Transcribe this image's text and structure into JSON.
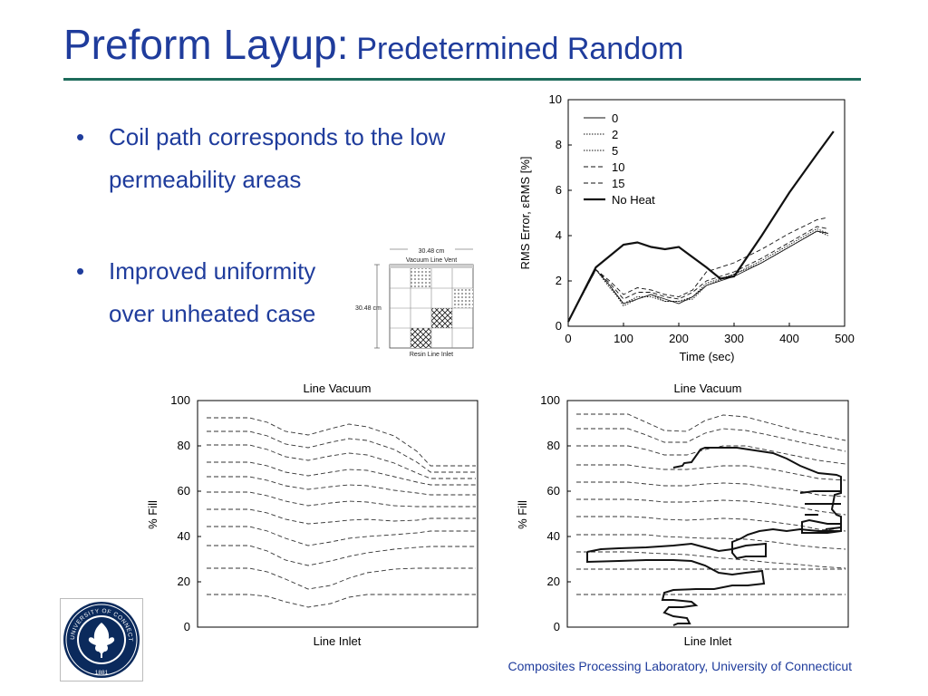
{
  "slide": {
    "title_main": "Preform Layup:",
    "title_sub": "Predetermined Random",
    "bullets": [
      "Coil path corresponds to the low permeability areas",
      "Improved uniformity over unheated case"
    ],
    "footer": "Composites Processing Laboratory, University of Connecticut"
  },
  "diagram": {
    "width_label": "30.48 cm",
    "height_label": "30.48 cm",
    "top_label": "Vacuum Line Vent",
    "bottom_label": "Resin Line Inlet"
  },
  "logo": {
    "seal_text": "UNIVERSITY OF CONNECTICUT",
    "year": "1881"
  },
  "chart_data": [
    {
      "type": "line",
      "xlabel": "Time (sec)",
      "ylabel": "RMS Error, εRMS [%]",
      "xlim": [
        0,
        500
      ],
      "ylim": [
        0,
        10
      ],
      "xticks": [
        0,
        100,
        200,
        300,
        400,
        500
      ],
      "yticks": [
        0,
        2,
        4,
        6,
        8,
        10
      ],
      "legend_position": "top-left",
      "series": [
        {
          "name": "0",
          "style": "solid-thin",
          "points": [
            [
              0,
              0.2
            ],
            [
              50,
              2.5
            ],
            [
              75,
              1.8
            ],
            [
              100,
              1.0
            ],
            [
              125,
              1.2
            ],
            [
              150,
              1.4
            ],
            [
              175,
              1.2
            ],
            [
              200,
              1.0
            ],
            [
              225,
              1.3
            ],
            [
              250,
              1.8
            ],
            [
              300,
              2.2
            ],
            [
              350,
              2.8
            ],
            [
              400,
              3.5
            ],
            [
              450,
              4.2
            ],
            [
              470,
              4.1
            ]
          ]
        },
        {
          "name": "2",
          "style": "dotted",
          "points": [
            [
              0,
              0.2
            ],
            [
              50,
              2.5
            ],
            [
              75,
              1.7
            ],
            [
              100,
              1.0
            ],
            [
              125,
              1.3
            ],
            [
              150,
              1.3
            ],
            [
              175,
              1.1
            ],
            [
              200,
              1.1
            ],
            [
              225,
              1.3
            ],
            [
              250,
              1.9
            ],
            [
              300,
              2.3
            ],
            [
              350,
              2.9
            ],
            [
              400,
              3.6
            ],
            [
              450,
              4.3
            ],
            [
              470,
              4.1
            ]
          ]
        },
        {
          "name": "5",
          "style": "dotted",
          "points": [
            [
              0,
              0.2
            ],
            [
              50,
              2.5
            ],
            [
              75,
              1.8
            ],
            [
              100,
              0.9
            ],
            [
              125,
              1.2
            ],
            [
              150,
              1.4
            ],
            [
              175,
              1.1
            ],
            [
              200,
              1.1
            ],
            [
              225,
              1.2
            ],
            [
              250,
              1.8
            ],
            [
              300,
              2.3
            ],
            [
              350,
              2.8
            ],
            [
              400,
              3.5
            ],
            [
              450,
              4.2
            ],
            [
              470,
              4.0
            ]
          ]
        },
        {
          "name": "10",
          "style": "dashed",
          "points": [
            [
              0,
              0.2
            ],
            [
              50,
              2.5
            ],
            [
              75,
              1.9
            ],
            [
              100,
              1.2
            ],
            [
              125,
              1.5
            ],
            [
              150,
              1.5
            ],
            [
              175,
              1.3
            ],
            [
              200,
              1.2
            ],
            [
              225,
              1.5
            ],
            [
              250,
              2.0
            ],
            [
              300,
              2.4
            ],
            [
              350,
              3.0
            ],
            [
              400,
              3.7
            ],
            [
              450,
              4.4
            ],
            [
              470,
              4.3
            ]
          ]
        },
        {
          "name": "15",
          "style": "dashed",
          "points": [
            [
              0,
              0.2
            ],
            [
              50,
              2.5
            ],
            [
              75,
              2.0
            ],
            [
              100,
              1.4
            ],
            [
              125,
              1.7
            ],
            [
              150,
              1.6
            ],
            [
              175,
              1.4
            ],
            [
              200,
              1.3
            ],
            [
              225,
              1.6
            ],
            [
              250,
              2.4
            ],
            [
              300,
              2.8
            ],
            [
              350,
              3.4
            ],
            [
              400,
              4.1
            ],
            [
              450,
              4.7
            ],
            [
              470,
              4.8
            ]
          ]
        },
        {
          "name": "No Heat",
          "style": "solid-thick",
          "points": [
            [
              0,
              0.2
            ],
            [
              50,
              2.6
            ],
            [
              100,
              3.6
            ],
            [
              125,
              3.7
            ],
            [
              150,
              3.5
            ],
            [
              175,
              3.4
            ],
            [
              200,
              3.5
            ],
            [
              250,
              2.6
            ],
            [
              275,
              2.1
            ],
            [
              300,
              2.2
            ],
            [
              350,
              4.0
            ],
            [
              400,
              5.9
            ],
            [
              450,
              7.6
            ],
            [
              480,
              8.6
            ]
          ]
        }
      ]
    },
    {
      "type": "contour",
      "title": "Line Vacuum",
      "xlabel": "Line Inlet",
      "ylabel": "% Fill",
      "ylim": [
        0,
        100
      ],
      "yticks": [
        0,
        20,
        40,
        60,
        80,
        100
      ],
      "grid": false
    },
    {
      "type": "contour",
      "title": "Line Vacuum",
      "xlabel": "Line Inlet",
      "ylabel": "% Fill",
      "ylim": [
        0,
        100
      ],
      "yticks": [
        0,
        20,
        40,
        60,
        80,
        100
      ],
      "grid": false
    }
  ]
}
